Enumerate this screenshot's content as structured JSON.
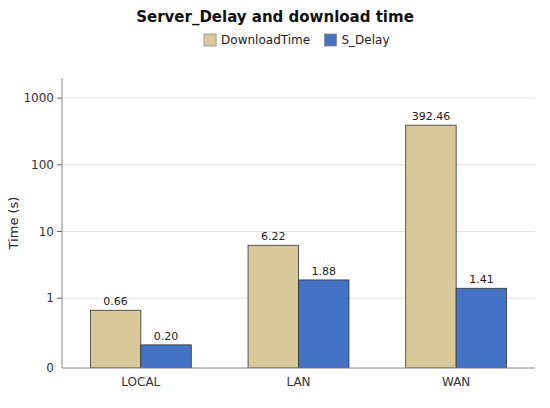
{
  "chart_data": {
    "type": "bar",
    "title": "Server_Delay and download time",
    "categories": [
      "LOCAL",
      "LAN",
      "WAN"
    ],
    "series": [
      {
        "name": "DownloadTime",
        "color": "#d9c99a",
        "values": [
          0.66,
          6.22,
          392.46
        ],
        "value_labels": [
          "0.66",
          "6.22",
          "392.46"
        ]
      },
      {
        "name": "S_Delay",
        "color": "#4472c4",
        "values": [
          0.2,
          1.88,
          1.41
        ],
        "value_labels": [
          "0.20",
          "1.88",
          "1.41"
        ]
      }
    ],
    "y_label": "Time (s)",
    "log": "y",
    "ylim": [
      0.09,
      2000
    ],
    "yticks": [
      1,
      10,
      100,
      1000
    ],
    "grid": true,
    "legend": "top",
    "data_labels": true,
    "annotations": [
      {
        "text": "0"
      }
    ]
  }
}
